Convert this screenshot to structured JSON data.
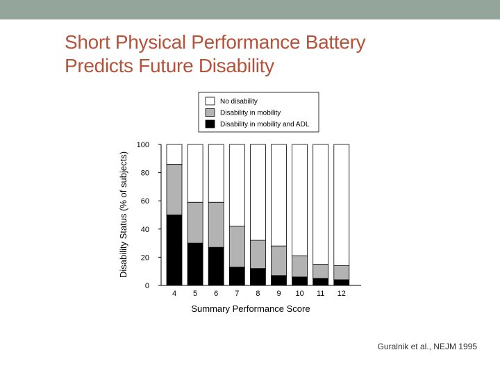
{
  "slide": {
    "title_line1": "Short Physical Performance Battery",
    "title_line2": "Predicts Future Disability",
    "citation": "Guralnik et al., NEJM 1995",
    "colors": {
      "top_band": "#94a59b",
      "title": "#b5533a"
    }
  },
  "chart_data": {
    "type": "bar",
    "stacked": true,
    "categories": [
      "4",
      "5",
      "6",
      "7",
      "8",
      "9",
      "10",
      "11",
      "12"
    ],
    "series": [
      {
        "name": "Disability in mobility and ADL",
        "color": "#000000",
        "values": [
          50,
          30,
          27,
          13,
          12,
          7,
          6,
          5,
          4
        ]
      },
      {
        "name": "Disability in mobility",
        "color": "#b3b3b3",
        "values": [
          36,
          29,
          32,
          29,
          20,
          21,
          15,
          10,
          10
        ]
      },
      {
        "name": "No disability",
        "color": "#ffffff",
        "values": [
          14,
          41,
          41,
          58,
          68,
          72,
          79,
          85,
          86
        ]
      }
    ],
    "legend_order": [
      "No disability",
      "Disability in mobility",
      "Disability in mobility and ADL"
    ],
    "title": "",
    "xlabel": "Summary Performance Score",
    "ylabel": "Disability Status (% of subjects)",
    "ylim": [
      0,
      100
    ],
    "yticks": [
      0,
      20,
      40,
      60,
      80,
      100
    ],
    "grid": false,
    "legend_position": "top"
  }
}
